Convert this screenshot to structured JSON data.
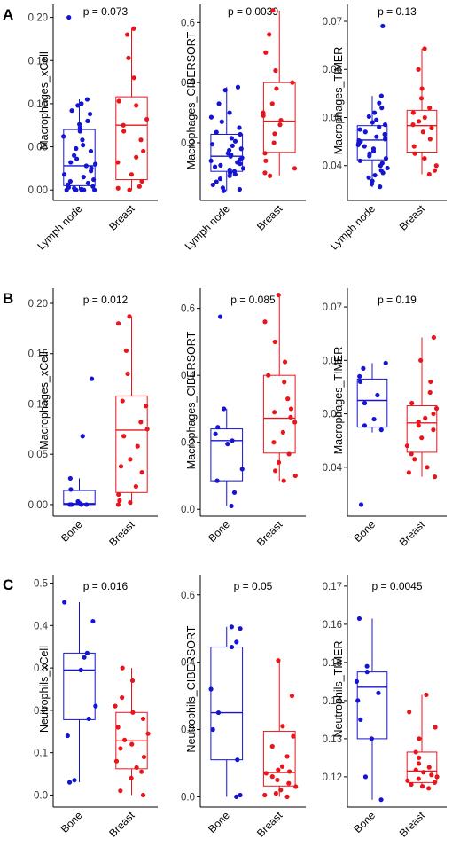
{
  "colors": {
    "group1": "#1414d2",
    "group2": "#e8161b",
    "axis": "#000000"
  },
  "panels": [
    {
      "letter": "A"
    },
    {
      "letter": "B"
    },
    {
      "letter": "C"
    }
  ],
  "chart_data": [
    {
      "panel": "A",
      "type": "box",
      "title": "p = 0.073",
      "ylabel": "Macrophages_xCell",
      "ylim": [
        -0.008,
        0.215
      ],
      "yticks": [
        0.0,
        0.05,
        0.1,
        0.15,
        0.2
      ],
      "ytick_labels": [
        "0.00",
        "0.05",
        "0.10",
        "0.15",
        "0.20"
      ],
      "categories": [
        "Lymph node",
        "Breast"
      ],
      "boxes": [
        {
          "group": "Lymph node",
          "q1": 0.005,
          "median": 0.028,
          "q3": 0.07,
          "whisker_low": 0.0,
          "whisker_high": 0.105
        },
        {
          "group": "Breast",
          "q1": 0.012,
          "median": 0.075,
          "q3": 0.108,
          "whisker_low": 0.0,
          "whisker_high": 0.187
        }
      ],
      "points": [
        {
          "group": "Lymph node",
          "values": [
            0.2,
            0.105,
            0.1,
            0.098,
            0.092,
            0.088,
            0.08,
            0.076,
            0.072,
            0.068,
            0.062,
            0.058,
            0.052,
            0.048,
            0.045,
            0.04,
            0.036,
            0.032,
            0.03,
            0.028,
            0.025,
            0.022,
            0.018,
            0.015,
            0.012,
            0.01,
            0.008,
            0.006,
            0.004,
            0.003,
            0.002,
            0.001,
            0.0,
            0.0,
            0.0,
            0.0,
            0.0,
            0.0
          ]
        },
        {
          "group": "Breast",
          "values": [
            0.187,
            0.18,
            0.153,
            0.13,
            0.103,
            0.098,
            0.082,
            0.075,
            0.068,
            0.058,
            0.045,
            0.038,
            0.032,
            0.018,
            0.01,
            0.004,
            0.002,
            0.0
          ]
        }
      ]
    },
    {
      "panel": "A",
      "type": "box",
      "title": "p = 0.0039",
      "ylabel": "Macrophages_CIBERSORT",
      "ylim": [
        0.02,
        0.66
      ],
      "yticks": [
        0.2,
        0.4,
        0.6
      ],
      "ytick_labels": [
        "0.2",
        "0.4",
        "0.6"
      ],
      "categories": [
        "Lymph node",
        "Breast"
      ],
      "boxes": [
        {
          "group": "Lymph node",
          "q1": 0.105,
          "median": 0.155,
          "q3": 0.228,
          "whisker_low": 0.04,
          "whisker_high": 0.385
        },
        {
          "group": "Breast",
          "q1": 0.168,
          "median": 0.272,
          "q3": 0.4,
          "whisker_low": 0.09,
          "whisker_high": 0.64
        }
      ],
      "points": [
        {
          "group": "Lymph node",
          "values": [
            0.385,
            0.375,
            0.33,
            0.3,
            0.285,
            0.27,
            0.25,
            0.235,
            0.228,
            0.215,
            0.205,
            0.195,
            0.19,
            0.18,
            0.175,
            0.165,
            0.16,
            0.155,
            0.15,
            0.145,
            0.14,
            0.135,
            0.13,
            0.125,
            0.12,
            0.115,
            0.11,
            0.105,
            0.1,
            0.095,
            0.09,
            0.08,
            0.07,
            0.06,
            0.05,
            0.045,
            0.04
          ]
        },
        {
          "group": "Breast",
          "values": [
            0.64,
            0.56,
            0.5,
            0.44,
            0.4,
            0.38,
            0.33,
            0.3,
            0.29,
            0.275,
            0.26,
            0.23,
            0.2,
            0.165,
            0.14,
            0.115,
            0.1,
            0.09
          ]
        }
      ]
    },
    {
      "panel": "A",
      "type": "box",
      "title": "p = 0.13",
      "ylabel": "Macrophages_TIMER",
      "ylim": [
        0.0335,
        0.0735
      ],
      "yticks": [
        0.04,
        0.05,
        0.06,
        0.07
      ],
      "ytick_labels": [
        "0.04",
        "0.05",
        "0.06",
        "0.07"
      ],
      "categories": [
        "Lymph node",
        "Breast"
      ],
      "boxes": [
        {
          "group": "Lymph node",
          "q1": 0.0412,
          "median": 0.0453,
          "q3": 0.0483,
          "whisker_low": 0.0355,
          "whisker_high": 0.0545
        },
        {
          "group": "Breast",
          "q1": 0.0428,
          "median": 0.0483,
          "q3": 0.0515,
          "whisker_low": 0.0382,
          "whisker_high": 0.0643
        }
      ],
      "points": [
        {
          "group": "Lymph node",
          "values": [
            0.069,
            0.0545,
            0.053,
            0.052,
            0.051,
            0.0502,
            0.0495,
            0.049,
            0.0485,
            0.048,
            0.0475,
            0.047,
            0.0465,
            0.046,
            0.0455,
            0.0452,
            0.045,
            0.0447,
            0.0443,
            0.044,
            0.0435,
            0.043,
            0.0425,
            0.042,
            0.0415,
            0.041,
            0.0405,
            0.04,
            0.0395,
            0.039,
            0.0385,
            0.038,
            0.0375,
            0.0368,
            0.0362,
            0.0356
          ]
        },
        {
          "group": "Breast",
          "values": [
            0.0643,
            0.06,
            0.056,
            0.054,
            0.052,
            0.051,
            0.05,
            0.0492,
            0.0485,
            0.0478,
            0.047,
            0.0455,
            0.044,
            0.0425,
            0.0415,
            0.04,
            0.039,
            0.0382
          ]
        }
      ]
    },
    {
      "panel": "B",
      "type": "box",
      "title": "p = 0.012",
      "ylabel": "Macrophages_xCell",
      "ylim": [
        -0.008,
        0.215
      ],
      "yticks": [
        0.0,
        0.05,
        0.1,
        0.15,
        0.2
      ],
      "ytick_labels": [
        "0.00",
        "0.05",
        "0.10",
        "0.15",
        "0.20"
      ],
      "categories": [
        "Bone",
        "Breast"
      ],
      "boxes": [
        {
          "group": "Bone",
          "q1": 0.0,
          "median": 0.001,
          "q3": 0.014,
          "whisker_low": 0.0,
          "whisker_high": 0.026
        },
        {
          "group": "Breast",
          "q1": 0.012,
          "median": 0.074,
          "q3": 0.108,
          "whisker_low": 0.0,
          "whisker_high": 0.187
        }
      ],
      "points": [
        {
          "group": "Bone",
          "values": [
            0.125,
            0.068,
            0.026,
            0.015,
            0.003,
            0.001,
            0.0,
            0.0,
            0.0,
            0.0
          ]
        },
        {
          "group": "Breast",
          "values": [
            0.187,
            0.18,
            0.153,
            0.13,
            0.103,
            0.098,
            0.082,
            0.075,
            0.068,
            0.058,
            0.045,
            0.038,
            0.032,
            0.018,
            0.01,
            0.004,
            0.002,
            0.0
          ]
        }
      ]
    },
    {
      "panel": "B",
      "type": "box",
      "title": "p = 0.085",
      "ylabel": "Macrophages_CIBERSORT",
      "ylim": [
        -0.01,
        0.66
      ],
      "yticks": [
        0.0,
        0.2,
        0.4,
        0.6
      ],
      "ytick_labels": [
        "0.0",
        "0.2",
        "0.4",
        "0.6"
      ],
      "categories": [
        "Bone",
        "Breast"
      ],
      "boxes": [
        {
          "group": "Bone",
          "q1": 0.085,
          "median": 0.205,
          "q3": 0.24,
          "whisker_low": 0.01,
          "whisker_high": 0.3
        },
        {
          "group": "Breast",
          "q1": 0.168,
          "median": 0.272,
          "q3": 0.4,
          "whisker_low": 0.085,
          "whisker_high": 0.64
        }
      ],
      "points": [
        {
          "group": "Bone",
          "values": [
            0.575,
            0.3,
            0.245,
            0.225,
            0.205,
            0.195,
            0.12,
            0.085,
            0.05,
            0.01
          ]
        },
        {
          "group": "Breast",
          "values": [
            0.64,
            0.56,
            0.5,
            0.44,
            0.4,
            0.38,
            0.33,
            0.3,
            0.29,
            0.275,
            0.26,
            0.23,
            0.2,
            0.165,
            0.14,
            0.115,
            0.1,
            0.085
          ]
        }
      ]
    },
    {
      "panel": "B",
      "type": "box",
      "title": "p = 0.19",
      "ylabel": "Macrophages_TIMER",
      "ylim": [
        0.0315,
        0.0735
      ],
      "yticks": [
        0.04,
        0.05,
        0.06,
        0.07
      ],
      "ytick_labels": [
        "0.04",
        "0.05",
        "0.06",
        "0.07"
      ],
      "categories": [
        "Bone",
        "Breast"
      ],
      "boxes": [
        {
          "group": "Bone",
          "q1": 0.0475,
          "median": 0.0525,
          "q3": 0.0565,
          "whisker_low": 0.0465,
          "whisker_high": 0.0595
        },
        {
          "group": "Breast",
          "q1": 0.0428,
          "median": 0.0483,
          "q3": 0.0515,
          "whisker_low": 0.0382,
          "whisker_high": 0.0643
        }
      ],
      "points": [
        {
          "group": "Bone",
          "values": [
            0.0595,
            0.0585,
            0.057,
            0.056,
            0.0535,
            0.052,
            0.049,
            0.0478,
            0.047,
            0.033
          ]
        },
        {
          "group": "Breast",
          "values": [
            0.0643,
            0.06,
            0.056,
            0.054,
            0.052,
            0.051,
            0.05,
            0.0492,
            0.0485,
            0.0478,
            0.047,
            0.0455,
            0.044,
            0.0425,
            0.0415,
            0.04,
            0.039,
            0.0382
          ]
        }
      ]
    },
    {
      "panel": "C",
      "type": "box",
      "title": "p = 0.016",
      "ylabel": "Neutrophils_xCell",
      "ylim": [
        -0.02,
        0.52
      ],
      "yticks": [
        0.0,
        0.1,
        0.2,
        0.3,
        0.4,
        0.5
      ],
      "ytick_labels": [
        "0.0",
        "0.1",
        "0.2",
        "0.3",
        "0.4",
        "0.5"
      ],
      "categories": [
        "Bone",
        "Breast"
      ],
      "boxes": [
        {
          "group": "Bone",
          "q1": 0.178,
          "median": 0.295,
          "q3": 0.335,
          "whisker_low": 0.03,
          "whisker_high": 0.455
        },
        {
          "group": "Breast",
          "q1": 0.062,
          "median": 0.128,
          "q3": 0.195,
          "whisker_low": 0.0,
          "whisker_high": 0.3
        }
      ],
      "points": [
        {
          "group": "Bone",
          "values": [
            0.455,
            0.41,
            0.335,
            0.325,
            0.295,
            0.21,
            0.18,
            0.14,
            0.035,
            0.03
          ]
        },
        {
          "group": "Breast",
          "values": [
            0.3,
            0.27,
            0.23,
            0.21,
            0.195,
            0.18,
            0.16,
            0.145,
            0.13,
            0.12,
            0.11,
            0.09,
            0.08,
            0.065,
            0.055,
            0.04,
            0.01,
            0.0
          ]
        }
      ]
    },
    {
      "panel": "C",
      "type": "box",
      "title": "p = 0.05",
      "ylabel": "Neutrophils_CIBERSORT",
      "ylim": [
        -0.02,
        0.66
      ],
      "yticks": [
        0.0,
        0.2,
        0.4,
        0.6
      ],
      "ytick_labels": [
        "0.0",
        "0.2",
        "0.4",
        "0.6"
      ],
      "categories": [
        "Bone",
        "Breast"
      ],
      "boxes": [
        {
          "group": "Bone",
          "q1": 0.11,
          "median": 0.25,
          "q3": 0.445,
          "whisker_low": 0.0,
          "whisker_high": 0.505
        },
        {
          "group": "Breast",
          "q1": 0.032,
          "median": 0.072,
          "q3": 0.195,
          "whisker_low": 0.0,
          "whisker_high": 0.405
        }
      ],
      "points": [
        {
          "group": "Bone",
          "values": [
            0.505,
            0.5,
            0.46,
            0.445,
            0.32,
            0.25,
            0.2,
            0.11,
            0.005,
            0.0
          ]
        },
        {
          "group": "Breast",
          "values": [
            0.405,
            0.3,
            0.21,
            0.18,
            0.15,
            0.12,
            0.09,
            0.08,
            0.075,
            0.07,
            0.06,
            0.05,
            0.04,
            0.03,
            0.02,
            0.01,
            0.005,
            0.0
          ]
        }
      ]
    },
    {
      "panel": "C",
      "type": "box",
      "title": "p = 0.0045",
      "ylabel": "Neutrophils_TIMER",
      "ylim": [
        0.113,
        0.173
      ],
      "yticks": [
        0.12,
        0.13,
        0.14,
        0.15,
        0.16,
        0.17
      ],
      "ytick_labels": [
        "0.12",
        "0.13",
        "0.14",
        "0.15",
        "0.16",
        "0.17"
      ],
      "categories": [
        "Bone",
        "Breast"
      ],
      "boxes": [
        {
          "group": "Bone",
          "q1": 0.13,
          "median": 0.1435,
          "q3": 0.1475,
          "whisker_low": 0.114,
          "whisker_high": 0.1615
        },
        {
          "group": "Breast",
          "q1": 0.1185,
          "median": 0.1215,
          "q3": 0.1265,
          "whisker_low": 0.117,
          "whisker_high": 0.1415
        }
      ],
      "points": [
        {
          "group": "Bone",
          "values": [
            0.1615,
            0.149,
            0.1475,
            0.145,
            0.142,
            0.14,
            0.135,
            0.13,
            0.12,
            0.114
          ]
        },
        {
          "group": "Breast",
          "values": [
            0.1415,
            0.137,
            0.133,
            0.13,
            0.1265,
            0.125,
            0.1235,
            0.1225,
            0.1218,
            0.1212,
            0.1205,
            0.12,
            0.1195,
            0.119,
            0.1185,
            0.118,
            0.1175,
            0.117
          ]
        }
      ]
    }
  ]
}
